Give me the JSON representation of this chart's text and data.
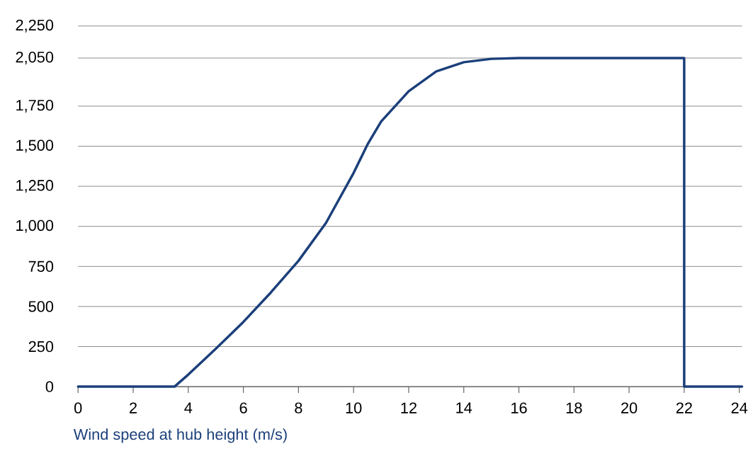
{
  "chart_data": {
    "type": "line",
    "xlabel": "Wind speed at hub height (m/s)",
    "x": [
      0,
      1,
      2,
      3,
      3.5,
      4,
      5,
      6,
      7,
      8,
      9,
      10,
      10.5,
      11,
      12,
      13,
      14,
      15,
      16,
      18,
      20,
      22,
      22,
      23,
      24.1
    ],
    "series": [
      {
        "color": "#1b3f7a",
        "values": [
          0,
          0,
          0,
          0,
          0,
          75,
          237,
          404,
          588,
          785,
          1022,
          1333,
          1509,
          1654,
          1843,
          1967,
          2024,
          2045,
          2050,
          2050,
          2050,
          2050,
          0,
          0,
          0
        ]
      }
    ],
    "xlim": [
      0,
      24.1
    ],
    "xticks": [
      0,
      2,
      4,
      6,
      8,
      10,
      12,
      14,
      16,
      18,
      20,
      22,
      24
    ],
    "ylim": [
      0,
      2250
    ],
    "yticks": [
      0,
      250,
      500,
      750,
      {
        "value": 1000,
        "label": "1,000"
      },
      {
        "value": 1250,
        "label": "1,250"
      },
      {
        "value": 1500,
        "label": "1,500"
      },
      {
        "value": 1750,
        "label": "1,750"
      },
      {
        "value": 2050,
        "label": "2,050"
      },
      {
        "value": 2250,
        "label": "2,250"
      }
    ],
    "grid": "y",
    "marker": "none",
    "line_style": "solid"
  }
}
